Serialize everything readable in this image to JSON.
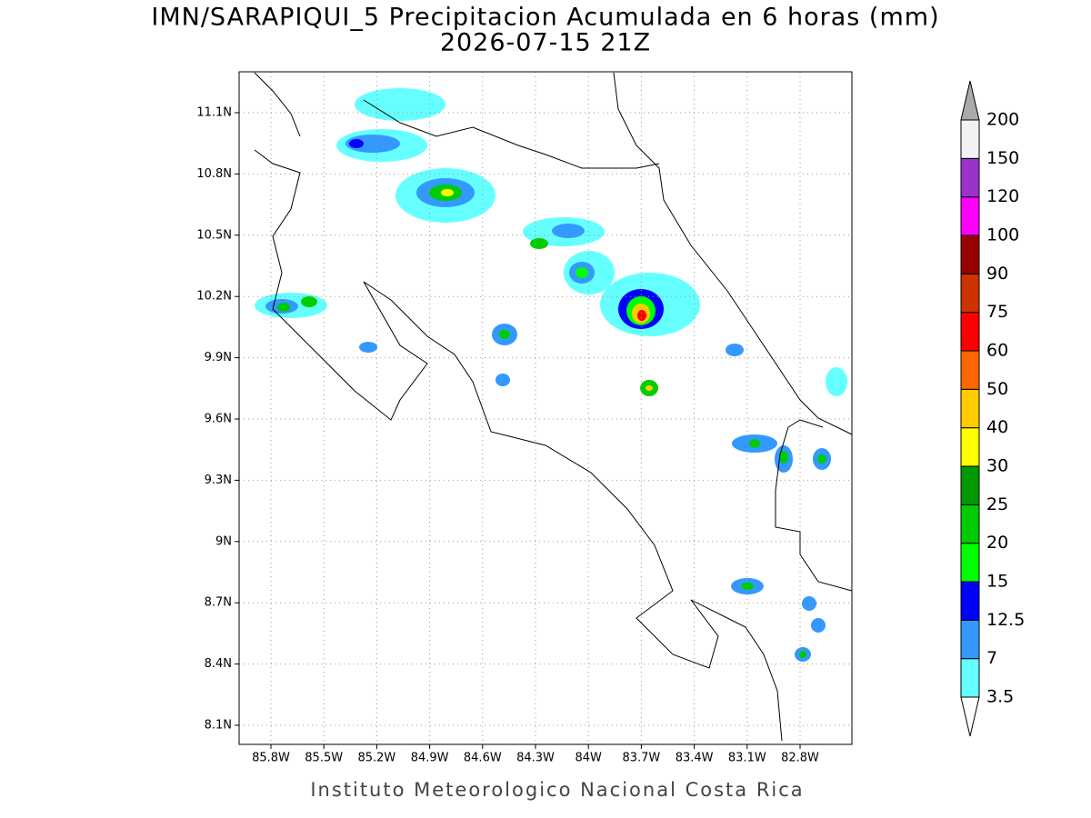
{
  "title": "IMN/SARAPIQUI_5 Precipitacion Acumulada en 6 horas (mm)",
  "subtitle": "2026-07-15 21Z",
  "footer": "Instituto Meteorologico Nacional Costa Rica",
  "map": {
    "lat_ticks": [
      "11.1N",
      "10.8N",
      "10.5N",
      "10.2N",
      "9.9N",
      "9.6N",
      "9.3N",
      "9N",
      "8.7N",
      "8.4N",
      "8.1N"
    ],
    "lon_ticks": [
      "85.8W",
      "85.5W",
      "85.2W",
      "84.9W",
      "84.6W",
      "84.3W",
      "84W",
      "83.7W",
      "83.4W",
      "83.1W",
      "82.8W"
    ]
  },
  "colorbar": {
    "levels": [
      "3.5",
      "7",
      "12.5",
      "15",
      "20",
      "25",
      "30",
      "40",
      "50",
      "60",
      "75",
      "90",
      "100",
      "120",
      "150",
      "200"
    ],
    "colors": [
      "#66ffff",
      "#3399ff",
      "#0000ff",
      "#00ff00",
      "#00cc00",
      "#009900",
      "#ffff00",
      "#ffcc00",
      "#ff6600",
      "#ff0000",
      "#cc3300",
      "#990000",
      "#ff00ff",
      "#9933cc",
      "#f2f2f2"
    ],
    "under_color": "#ffffff",
    "over_color": "#aaaaaa"
  }
}
